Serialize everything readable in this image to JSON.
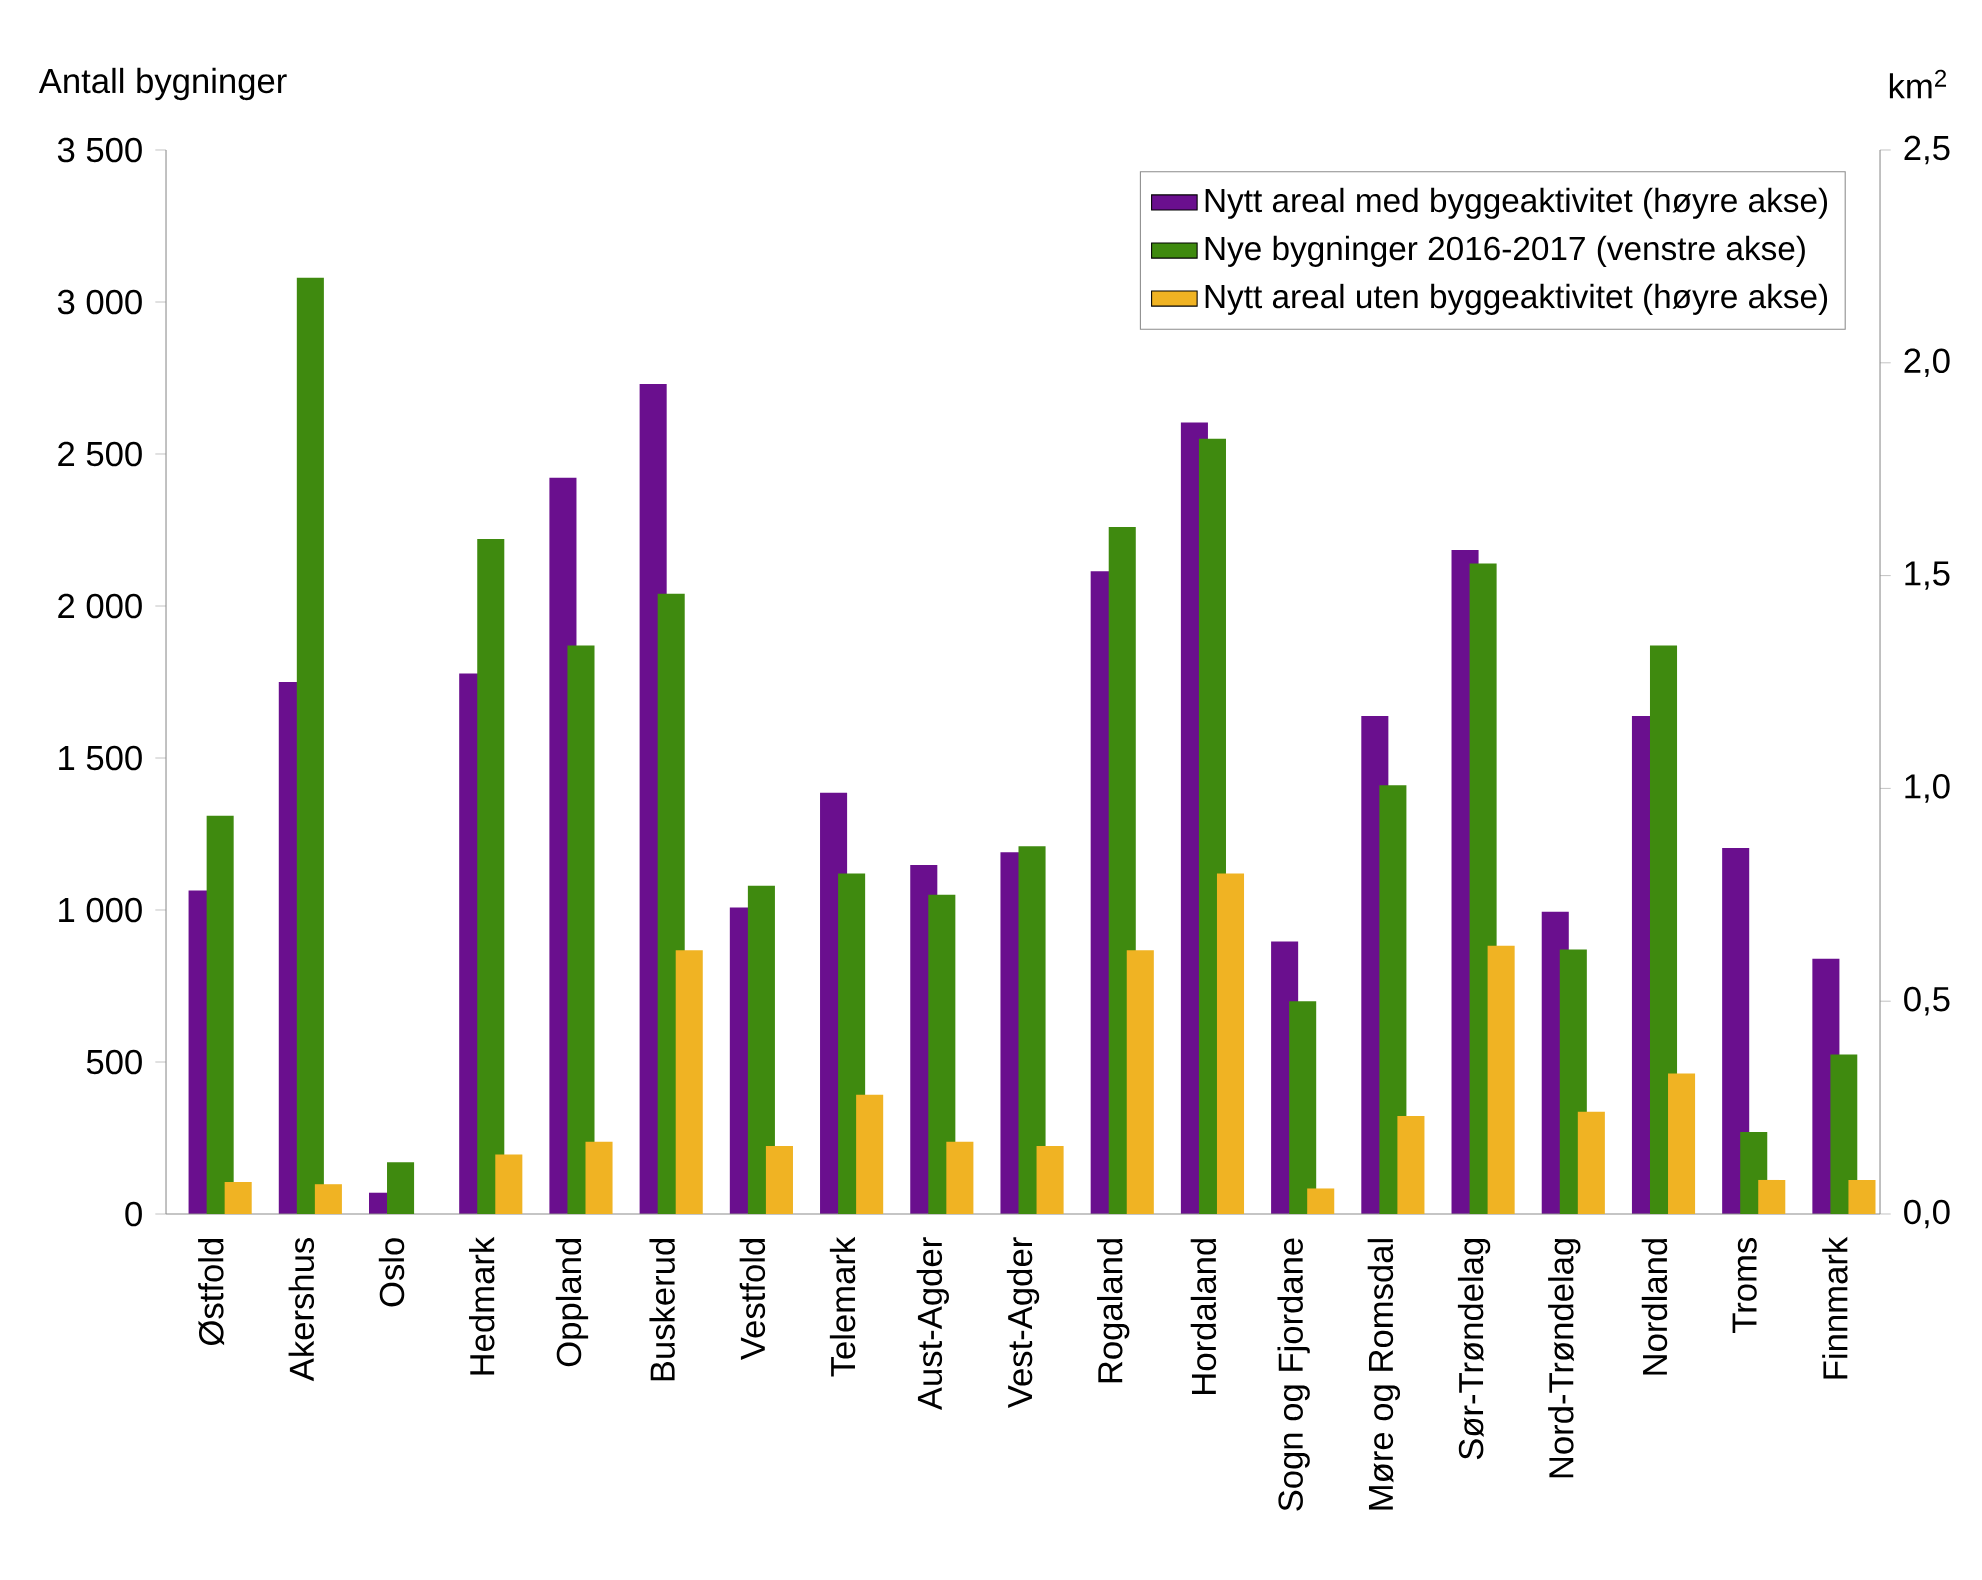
{
  "chart_data": {
    "type": "bar",
    "ylabel": "Antall bygninger",
    "y2label": "km$^{2}$",
    "categories": [
      "Østfold",
      "Akershus",
      "Oslo",
      "Hedmark",
      "Oppland",
      "Buskerud",
      "Vestfold",
      "Telemark",
      "Aust-Agder",
      "Vest-Agder",
      "Rogaland",
      "Hordaland",
      "Sogn og Fjordane",
      "Møre og Romsdal",
      "Sør-Trøndelag",
      "Nord-Trøndelag",
      "Nordland",
      "Troms",
      "Finnmark"
    ],
    "series": [
      {
        "name": "Nytt areal med byggeaktivitet (høyre akse)",
        "color": "#6a0f8e",
        "axis": "y2",
        "values": [
          0.76,
          1.25,
          0.05,
          1.27,
          1.73,
          1.95,
          0.72,
          0.99,
          0.82,
          0.85,
          1.51,
          1.86,
          0.64,
          1.17,
          1.56,
          0.71,
          1.17,
          0.86,
          0.6
        ]
      },
      {
        "name": "Nye bygninger 2016-2017 (venstre akse)",
        "color": "#3f8a0f",
        "values": [
          1310,
          3080,
          170,
          2220,
          1870,
          2040,
          1080,
          1120,
          1050,
          1210,
          2260,
          2550,
          700,
          1410,
          2140,
          870,
          1870,
          270,
          525
        ]
      },
      {
        "name": "Nytt areal uten byggeaktivitet (høyre akse)",
        "color": "#f0b323",
        "axis": "y2",
        "values": [
          0.075,
          0.07,
          0,
          0.14,
          0.17,
          0.62,
          0.16,
          0.28,
          0.17,
          0.16,
          0.62,
          0.8,
          0.06,
          0.23,
          0.63,
          0.24,
          0.33,
          0.08,
          0.08
        ]
      }
    ],
    "ylim": [
      0,
      3500
    ],
    "yticks": [
      {
        "value": 0,
        "label": "0"
      },
      {
        "value": 500,
        "label": "500"
      },
      {
        "value": 1000,
        "label": "1 000"
      },
      {
        "value": 1500,
        "label": "1 500"
      },
      {
        "value": 2000,
        "label": "2 000"
      },
      {
        "value": 2500,
        "label": "2 500"
      },
      {
        "value": 3000,
        "label": "3 000"
      },
      {
        "value": 3500,
        "label": "3 500"
      }
    ],
    "y2lim": [
      0,
      2.5
    ],
    "y2ticks": [
      {
        "value": 0,
        "label": "0,0"
      },
      {
        "value": 0.5,
        "label": "0,5"
      },
      {
        "value": 1,
        "label": "1,0"
      },
      {
        "value": 1.5,
        "label": "1,5"
      },
      {
        "value": 2,
        "label": "2,0"
      },
      {
        "value": 2.5,
        "label": "2,5"
      }
    ],
    "legend": "top right",
    "grid": false
  }
}
